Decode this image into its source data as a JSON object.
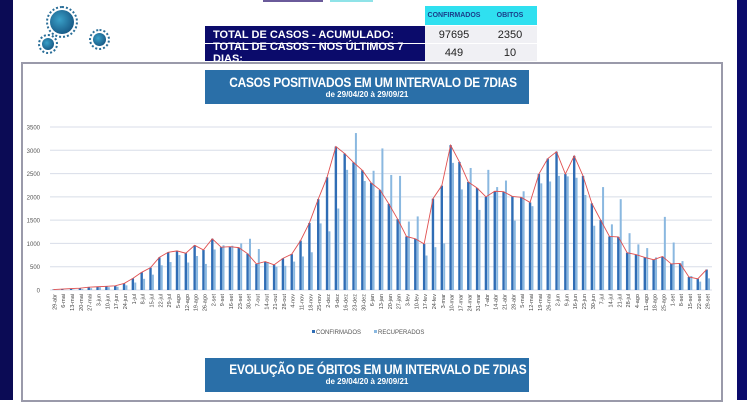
{
  "summary": {
    "headers": [
      "CONFIRMADOS",
      "OBITOS"
    ],
    "rows": [
      {
        "label": "TOTAL DE CASOS  - ACUMULADO:",
        "confirmados": "97695",
        "obitos": "2350"
      },
      {
        "label": "TOTAL DE CASOS  - NOS ÚLTIMOS 7 DIAS:",
        "confirmados": "449",
        "obitos": "10"
      }
    ]
  },
  "chart1": {
    "title": "CASOS POSITIVADOS EM UM INTERVALO DE 7DIAS",
    "subtitle": "de 29/04/20 à 29/09/21"
  },
  "chart2": {
    "title": "EVOLUÇÃO DE ÓBITOS EM UM INTERVALO DE 7DIAS",
    "subtitle": "de 29/04/20 à 29/09/21"
  },
  "colors": {
    "navy": "#0b0b6b",
    "cyan": "#2fe0f0",
    "title_blue": "#2a6fa8",
    "confirmados": "#2f6db5",
    "recuperados": "#8ab8e0",
    "trend": "#e05050"
  },
  "icons": [
    "virus-icon"
  ],
  "chart_data": {
    "type": "bar",
    "title": "CASOS POSITIVADOS EM UM INTERVALO DE 7DIAS",
    "ylim": [
      0,
      3500
    ],
    "yticks": [
      0,
      500,
      1000,
      1500,
      2000,
      2500,
      3000,
      3500
    ],
    "grid": true,
    "legend": "bottom",
    "categories": [
      "29-abr",
      "6-mai",
      "13-mai",
      "20-mai",
      "27-mai",
      "3-jun",
      "10-jun",
      "17-jun",
      "24-jun",
      "1-jul",
      "8-jul",
      "15-jul",
      "22-jul",
      "29-jul",
      "5-ago",
      "12-ago",
      "19-ago",
      "26-ago",
      "2-set",
      "9-set",
      "16-set",
      "23-set",
      "30-set",
      "7-out",
      "14-out",
      "21-out",
      "28-out",
      "4-nov",
      "11-nov",
      "18-nov",
      "25-nov",
      "2-dez",
      "9-dez",
      "16-dez",
      "23-dez",
      "30-dez",
      "6-jan",
      "13-jan",
      "20-jan",
      "27-jan",
      "3-fev",
      "10-fev",
      "17-fev",
      "24-fev",
      "3-mar",
      "10-mar",
      "17-mar",
      "24-mar",
      "31-mar",
      "7-abr",
      "14-abr",
      "21-abr",
      "28-abr",
      "5-mai",
      "12-mai",
      "19-mai",
      "26-mai",
      "2-jun",
      "9-jun",
      "16-jun",
      "23-jun",
      "30-jun",
      "7-jul",
      "14-jul",
      "21-jul",
      "28-jul",
      "4-ago",
      "11-ago",
      "18-ago",
      "25-ago",
      "1-set",
      "8-set",
      "15-set",
      "22-set",
      "29-set"
    ],
    "series": [
      {
        "name": "CONFIRMADOS",
        "values": [
          10,
          20,
          30,
          40,
          60,
          70,
          80,
          90,
          140,
          250,
          380,
          480,
          700,
          810,
          840,
          790,
          960,
          860,
          1100,
          920,
          930,
          910,
          780,
          560,
          610,
          540,
          680,
          770,
          1060,
          1440,
          1950,
          2420,
          3080,
          2930,
          2740,
          2570,
          2300,
          2150,
          1850,
          1520,
          1150,
          1100,
          990,
          1960,
          2240,
          3110,
          2750,
          2320,
          2190,
          2000,
          2120,
          2110,
          2010,
          1990,
          1880,
          2490,
          2820,
          2970,
          2490,
          2880,
          2450,
          1860,
          1500,
          1150,
          1140,
          800,
          760,
          700,
          650,
          720,
          560,
          570,
          280,
          240,
          440
        ]
      },
      {
        "name": "RECUPERADOS",
        "values": [
          0,
          0,
          10,
          20,
          40,
          60,
          60,
          70,
          100,
          160,
          240,
          330,
          530,
          600,
          750,
          590,
          730,
          560,
          870,
          960,
          950,
          1000,
          1100,
          880,
          600,
          500,
          520,
          610,
          720,
          810,
          1430,
          1260,
          1750,
          2580,
          3370,
          2340,
          2560,
          3040,
          2470,
          2450,
          1470,
          1580,
          740,
          920,
          1000,
          2730,
          2160,
          2620,
          1720,
          2580,
          2210,
          2350,
          1490,
          2120,
          1800,
          2290,
          2330,
          2450,
          2440,
          2410,
          2040,
          1380,
          2210,
          1410,
          1950,
          1220,
          980,
          900,
          700,
          1570,
          1020,
          620,
          300,
          180,
          250
        ]
      }
    ]
  }
}
